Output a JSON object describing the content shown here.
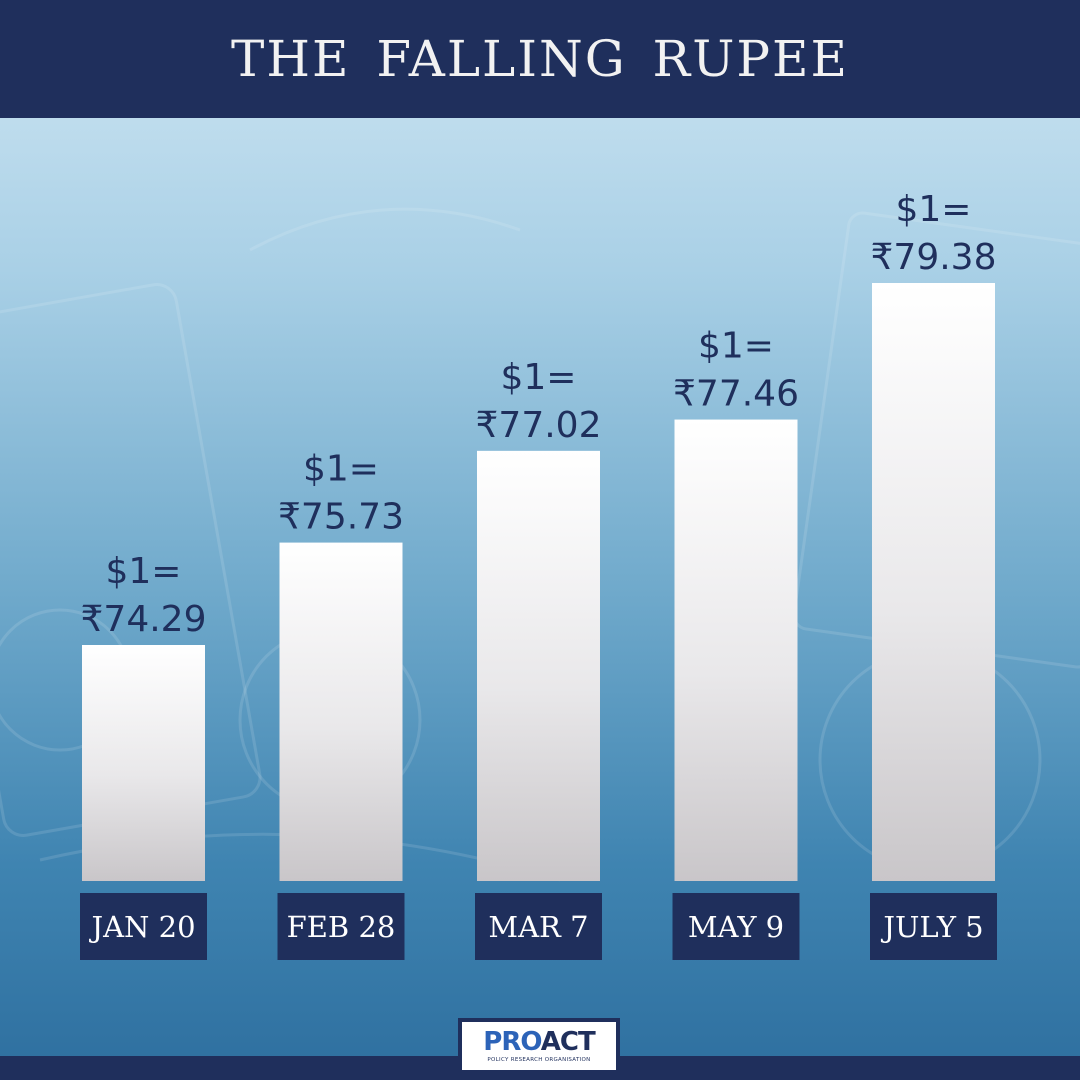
{
  "header": {
    "title": "THE FALLING RUPEE"
  },
  "chart_data": {
    "type": "bar",
    "title": "THE FALLING RUPEE",
    "categories": [
      "JAN 20",
      "FEB 28",
      "MAR 7",
      "MAY 9",
      "JULY 5"
    ],
    "values": [
      74.29,
      75.73,
      77.02,
      77.46,
      79.38
    ],
    "value_prefix_line": "$1=",
    "value_labels": [
      "₹74.29",
      "₹75.73",
      "₹77.02",
      "₹77.46",
      "₹79.38"
    ],
    "xlabel": "",
    "ylabel": "",
    "grid": false,
    "colors": {
      "bar": "#ffffff",
      "label_box": "#1f2f5c",
      "text": "#1f2f5c"
    }
  },
  "logo": {
    "primary": "PRO",
    "secondary": "ACT",
    "tagline": "POLICY RESEARCH ORGANISATION"
  },
  "colors": {
    "navy": "#1f2f5c",
    "accent_blue": "#2c63b8"
  }
}
